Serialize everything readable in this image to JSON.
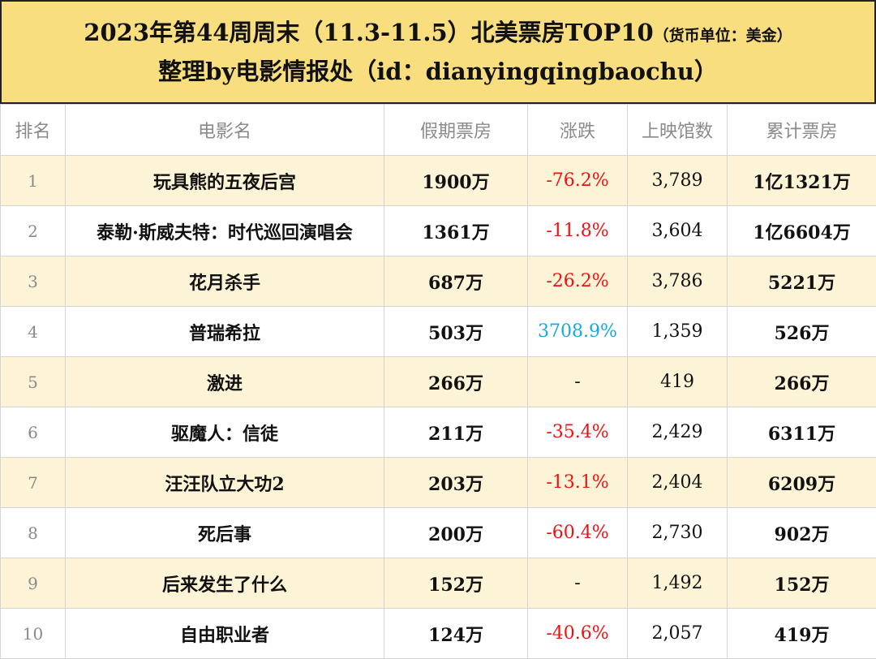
{
  "header": {
    "title_main": "2023年第44周周末（11.3-11.5）北美票房TOP10",
    "title_unit": "（货币单位：美金）",
    "subtitle": "整理by电影情报处（id：dianyingqingbaochu）"
  },
  "table": {
    "columns": [
      "排名",
      "电影名",
      "假期票房",
      "涨跌",
      "上映馆数",
      "累计票房"
    ],
    "rows": [
      {
        "rank": "1",
        "title": "玩具熊的五夜后宫",
        "gross": "1900万",
        "change": "-76.2%",
        "trend": "neg",
        "theaters": "3,789",
        "total": "1亿1321万"
      },
      {
        "rank": "2",
        "title": "泰勒·斯威夫特：时代巡回演唱会",
        "gross": "1361万",
        "change": "-11.8%",
        "trend": "neg",
        "theaters": "3,604",
        "total": "1亿6604万"
      },
      {
        "rank": "3",
        "title": "花月杀手",
        "gross": "687万",
        "change": "-26.2%",
        "trend": "neg",
        "theaters": "3,786",
        "total": "5221万"
      },
      {
        "rank": "4",
        "title": "普瑞希拉",
        "gross": "503万",
        "change": "3708.9%",
        "trend": "pos",
        "theaters": "1,359",
        "total": "526万"
      },
      {
        "rank": "5",
        "title": "激进",
        "gross": "266万",
        "change": "-",
        "trend": "flat",
        "theaters": "419",
        "total": "266万"
      },
      {
        "rank": "6",
        "title": "驱魔人：信徒",
        "gross": "211万",
        "change": "-35.4%",
        "trend": "neg",
        "theaters": "2,429",
        "total": "6311万"
      },
      {
        "rank": "7",
        "title": "汪汪队立大功2",
        "gross": "203万",
        "change": "-13.1%",
        "trend": "neg",
        "theaters": "2,404",
        "total": "6209万"
      },
      {
        "rank": "8",
        "title": "死后事",
        "gross": "200万",
        "change": "-60.4%",
        "trend": "neg",
        "theaters": "2,730",
        "total": "902万"
      },
      {
        "rank": "9",
        "title": "后来发生了什么",
        "gross": "152万",
        "change": "-",
        "trend": "flat",
        "theaters": "1,492",
        "total": "152万"
      },
      {
        "rank": "10",
        "title": "自由职业者",
        "gross": "124万",
        "change": "-40.6%",
        "trend": "neg",
        "theaters": "2,057",
        "total": "419万"
      }
    ]
  },
  "colors": {
    "title_background": "#f8de7e",
    "row_highlight": "#fdf3d6",
    "negative_change": "#ee1111",
    "positive_change": "#12aadf"
  }
}
